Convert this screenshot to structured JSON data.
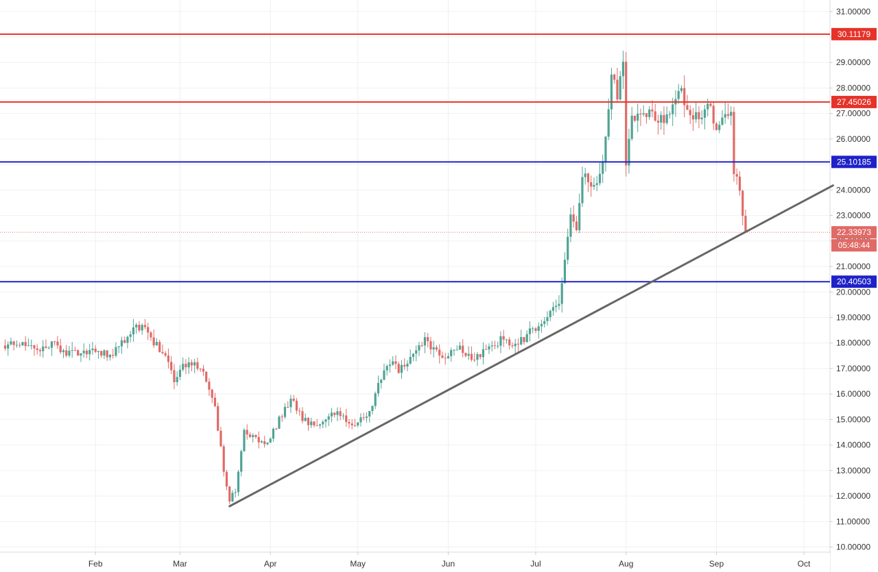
{
  "chart_data": {
    "type": "candlestick",
    "title": "",
    "xlabel": "",
    "ylabel": "",
    "ylim": [
      9.8,
      31.45
    ],
    "y_ticks": [
      "10.00000",
      "11.00000",
      "12.00000",
      "13.00000",
      "14.00000",
      "15.00000",
      "16.00000",
      "17.00000",
      "18.00000",
      "19.00000",
      "20.00000",
      "21.00000",
      "22.00000",
      "23.00000",
      "24.00000",
      "25.00000",
      "26.00000",
      "27.00000",
      "28.00000",
      "29.00000",
      "30.00000",
      "31.00000"
    ],
    "x_ticks": [
      {
        "label": "Feb",
        "day": 31
      },
      {
        "label": "Mar",
        "day": 60
      },
      {
        "label": "Apr",
        "day": 91
      },
      {
        "label": "May",
        "day": 121
      },
      {
        "label": "Jun",
        "day": 152
      },
      {
        "label": "Jul",
        "day": 182
      },
      {
        "label": "Aug",
        "day": 213
      },
      {
        "label": "Sep",
        "day": 244
      },
      {
        "label": "Oct",
        "day": 274
      }
    ],
    "horizontal_levels": [
      {
        "value": 30.11179,
        "label": "30.11179",
        "color": "#e5332a"
      },
      {
        "value": 27.45026,
        "label": "27.45026",
        "color": "#e5332a"
      },
      {
        "value": 25.10185,
        "label": "25.10185",
        "color": "#1e22c8"
      },
      {
        "value": 20.40503,
        "label": "20.40503",
        "color": "#1e22c8"
      }
    ],
    "trendline": {
      "from": {
        "day": 77,
        "value": 11.6
      },
      "to": {
        "day": 284,
        "value": 24.18
      },
      "color": "#666666"
    },
    "last_price": {
      "value": 22.33973,
      "label": "22.33973",
      "countdown": "05:48:44",
      "color": "#e06a66"
    },
    "colors": {
      "up": "#4fa394",
      "down": "#e06a66"
    },
    "waypoints": [
      [
        0,
        17.9
      ],
      [
        8,
        18.0
      ],
      [
        12,
        17.7
      ],
      [
        16,
        18.05
      ],
      [
        20,
        17.6
      ],
      [
        30,
        17.7
      ],
      [
        36,
        17.5
      ],
      [
        42,
        18.3
      ],
      [
        47,
        18.75
      ],
      [
        50,
        18.1
      ],
      [
        55,
        17.6
      ],
      [
        58,
        16.5
      ],
      [
        62,
        17.2
      ],
      [
        68,
        17.0
      ],
      [
        72,
        15.5
      ],
      [
        75,
        13.0
      ],
      [
        77,
        11.9
      ],
      [
        79,
        12.2
      ],
      [
        82,
        14.5
      ],
      [
        86,
        14.2
      ],
      [
        90,
        14.0
      ],
      [
        94,
        15.0
      ],
      [
        98,
        15.8
      ],
      [
        102,
        15.0
      ],
      [
        106,
        14.8
      ],
      [
        110,
        15.1
      ],
      [
        114,
        15.3
      ],
      [
        118,
        14.8
      ],
      [
        122,
        15.0
      ],
      [
        126,
        15.5
      ],
      [
        128,
        16.3
      ],
      [
        132,
        17.3
      ],
      [
        135,
        16.9
      ],
      [
        138,
        17.2
      ],
      [
        140,
        17.6
      ],
      [
        144,
        18.2
      ],
      [
        148,
        17.6
      ],
      [
        152,
        17.5
      ],
      [
        155,
        17.9
      ],
      [
        158,
        17.4
      ],
      [
        162,
        17.5
      ],
      [
        166,
        17.9
      ],
      [
        170,
        18.1
      ],
      [
        174,
        17.9
      ],
      [
        178,
        18.2
      ],
      [
        182,
        18.6
      ],
      [
        186,
        19.1
      ],
      [
        190,
        19.5
      ],
      [
        192,
        21.2
      ],
      [
        194,
        23.0
      ],
      [
        196,
        22.5
      ],
      [
        198,
        24.5
      ],
      [
        202,
        24.2
      ],
      [
        204,
        24.4
      ],
      [
        206,
        26.0
      ],
      [
        208,
        28.8
      ],
      [
        210,
        27.5
      ],
      [
        212,
        29.1
      ],
      [
        213,
        24.8
      ],
      [
        215,
        26.8
      ],
      [
        218,
        27.2
      ],
      [
        222,
        26.9
      ],
      [
        226,
        26.7
      ],
      [
        229,
        27.2
      ],
      [
        232,
        28.2
      ],
      [
        234,
        26.9
      ],
      [
        238,
        27.0
      ],
      [
        240,
        27.1
      ],
      [
        242,
        27.3
      ],
      [
        244,
        26.2
      ],
      [
        247,
        27.2
      ],
      [
        249,
        27.1
      ],
      [
        250,
        24.6
      ],
      [
        252,
        24.1
      ],
      [
        253,
        22.8
      ],
      [
        254,
        22.34
      ]
    ],
    "scale": {
      "x0": 7.45,
      "ppd": 4.25
    }
  }
}
